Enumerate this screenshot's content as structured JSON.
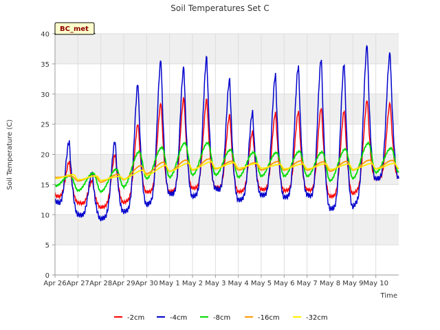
{
  "chart_data": {
    "type": "line",
    "title": "Soil Temperatures Set C",
    "xlabel": "Time",
    "ylabel": "Soil Temperature (C)",
    "ylim": [
      0,
      40
    ],
    "yticks": [
      0,
      5,
      10,
      15,
      20,
      25,
      30,
      35,
      40
    ],
    "xlim": [
      0,
      15
    ],
    "xtick_labels": [
      "Apr 26",
      "Apr 27",
      "Apr 28",
      "Apr 29",
      "Apr 30",
      "May 1",
      "May 2",
      "May 3",
      "May 4",
      "May 5",
      "May 6",
      "May 7",
      "May 8",
      "May 9",
      "May 10"
    ],
    "x_unit": "days since Apr 26",
    "station_badge": "BC_met",
    "grid": true,
    "legend_position": "bottom-center",
    "series": [
      {
        "name": "-2cm",
        "color": "#ff0000",
        "daily_min": [
          13.2,
          12.0,
          11.2,
          12.0,
          13.8,
          13.8,
          14.4,
          14.6,
          13.8,
          14.2,
          14.0,
          14.2,
          13.0,
          13.5,
          16.0
        ],
        "daily_max": [
          19.5,
          16.2,
          19.5,
          24.0,
          28.5,
          29.0,
          29.0,
          27.0,
          23.5,
          27.0,
          27.0,
          28.5,
          27.0,
          27.5,
          28.5
        ]
      },
      {
        "name": "-4cm",
        "color": "#0000cc",
        "daily_min": [
          12.3,
          10.0,
          9.3,
          10.5,
          11.7,
          13.5,
          13.0,
          14.4,
          12.4,
          13.3,
          12.9,
          13.4,
          11.0,
          11.3,
          16.0
        ],
        "daily_max": [
          23.5,
          17.5,
          21.5,
          31.0,
          34.5,
          34.7,
          35.2,
          33.6,
          26.4,
          33.4,
          34.3,
          37.3,
          34.9,
          35.3,
          36.8
        ]
      },
      {
        "name": "-8cm",
        "color": "#00dd00",
        "daily_min": [
          14.8,
          14.0,
          13.8,
          14.6,
          16.0,
          16.2,
          16.6,
          16.6,
          16.2,
          16.4,
          16.4,
          16.4,
          15.6,
          16.0,
          17.0
        ],
        "daily_max": [
          17.0,
          17.0,
          17.0,
          19.5,
          21.0,
          21.6,
          21.9,
          21.0,
          20.2,
          20.3,
          20.5,
          20.9,
          20.6,
          21.2,
          21.0
        ]
      },
      {
        "name": "-16cm",
        "color": "#ff9900",
        "daily_min": [
          16.2,
          15.6,
          15.4,
          15.8,
          16.8,
          17.2,
          17.4,
          17.6,
          17.4,
          17.4,
          17.4,
          17.4,
          17.2,
          17.4,
          17.6
        ],
        "daily_max": [
          16.8,
          16.6,
          16.4,
          17.4,
          18.4,
          18.9,
          19.1,
          19.0,
          18.6,
          18.8,
          18.9,
          18.9,
          18.7,
          18.9,
          19.0
        ]
      },
      {
        "name": "-32cm",
        "color": "#ffee00",
        "daily_min": [
          16.0,
          15.8,
          15.7,
          15.9,
          16.5,
          17.2,
          17.5,
          17.7,
          17.7,
          17.7,
          17.6,
          17.6,
          17.5,
          17.5,
          17.6
        ],
        "daily_max": [
          16.8,
          16.5,
          16.2,
          16.9,
          17.6,
          18.3,
          18.6,
          18.6,
          18.5,
          18.4,
          18.4,
          18.5,
          18.4,
          18.4,
          18.5
        ]
      }
    ]
  }
}
